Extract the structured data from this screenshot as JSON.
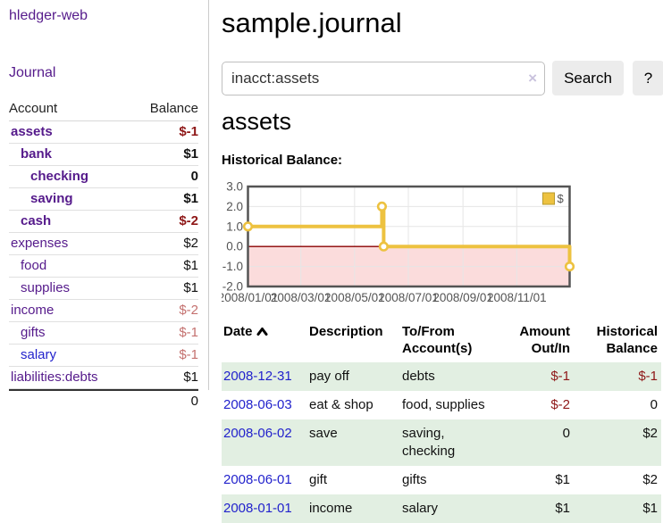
{
  "brand": "hledger-web",
  "nav": {
    "journal": "Journal"
  },
  "sidebar": {
    "col_account": "Account",
    "col_balance": "Balance",
    "accounts": [
      {
        "name": "assets",
        "balance": "$-1",
        "indent": 1,
        "bold": true
      },
      {
        "name": "bank",
        "balance": "$1",
        "indent": 2,
        "bold": true
      },
      {
        "name": "checking",
        "balance": "0",
        "indent": 3,
        "bold": true
      },
      {
        "name": "saving",
        "balance": "$1",
        "indent": 3,
        "bold": true
      },
      {
        "name": "cash",
        "balance": "$-2",
        "indent": 2,
        "bold": true
      },
      {
        "name": "expenses",
        "balance": "$2",
        "indent": 1
      },
      {
        "name": "food",
        "balance": "$1",
        "indent": 2
      },
      {
        "name": "supplies",
        "balance": "$1",
        "indent": 2
      },
      {
        "name": "income",
        "balance": "$-2",
        "indent": 1,
        "muted": true
      },
      {
        "name": "gifts",
        "balance": "$-1",
        "indent": 2,
        "muted": true
      },
      {
        "name": "salary",
        "balance": "$-1",
        "indent": 2,
        "muted": true,
        "link_color": "#2222cc"
      },
      {
        "name": "liabilities:debts",
        "balance": "$1",
        "indent": 1
      }
    ],
    "total": "0"
  },
  "main": {
    "title": "sample.journal",
    "search": {
      "value": "inacct:assets",
      "clear": "×",
      "button": "Search",
      "help": "?"
    },
    "heading": "assets",
    "chart_title": "Historical Balance:"
  },
  "chart_data": {
    "type": "line",
    "title": "Historical Balance of assets",
    "step": true,
    "series": [
      {
        "name": "$",
        "color": "#edc240",
        "points": [
          {
            "date": "2008-01-01",
            "day": 0,
            "value": 1
          },
          {
            "date": "2008-06-01",
            "day": 152,
            "value": 2
          },
          {
            "date": "2008-06-03",
            "day": 154,
            "value": 0
          },
          {
            "date": "2008-12-31",
            "day": 365,
            "value": -1
          }
        ]
      }
    ],
    "x_ticks": [
      {
        "label": "2008/01/01",
        "day": 0
      },
      {
        "label": "2008/03/01",
        "day": 60
      },
      {
        "label": "2008/05/01",
        "day": 121
      },
      {
        "label": "2008/07/01",
        "day": 182
      },
      {
        "label": "2008/09/01",
        "day": 244
      },
      {
        "label": "2008/11/01",
        "day": 305
      }
    ],
    "y_ticks": [
      3.0,
      2.0,
      1.0,
      0.0,
      -1.0,
      -2.0
    ],
    "xlim_days": [
      0,
      365
    ],
    "ylim": [
      -2,
      3
    ],
    "grid": true,
    "legend": {
      "position": "top-right",
      "label": "$"
    },
    "colors": {
      "line": "#edc240",
      "point_fill": "#ffffff",
      "negative_region": "#fbdcdc",
      "zero_line": "#8b0000",
      "gridline": "#e6e6e6",
      "plot_border": "#545454",
      "tick_text": "#545454"
    }
  },
  "table": {
    "headers": {
      "date": "Date",
      "description": "Description",
      "account": [
        "To/From",
        "Account(s)"
      ],
      "amount": [
        "Amount",
        "Out/In"
      ],
      "balance": [
        "Historical",
        "Balance"
      ]
    },
    "rows": [
      {
        "date": "2008-12-31",
        "description": "pay off",
        "accounts": "debts",
        "amount": "$-1",
        "balance": "$-1"
      },
      {
        "date": "2008-06-03",
        "description": "eat & shop",
        "accounts": "food, supplies",
        "amount": "$-2",
        "balance": "0"
      },
      {
        "date": "2008-06-02",
        "description": "save",
        "accounts": "saving, checking",
        "amount": "0",
        "balance": "$2"
      },
      {
        "date": "2008-06-01",
        "description": "gift",
        "accounts": "gifts",
        "amount": "$1",
        "balance": "$2"
      },
      {
        "date": "2008-01-01",
        "description": "income",
        "accounts": "salary",
        "amount": "$1",
        "balance": "$1"
      }
    ]
  }
}
